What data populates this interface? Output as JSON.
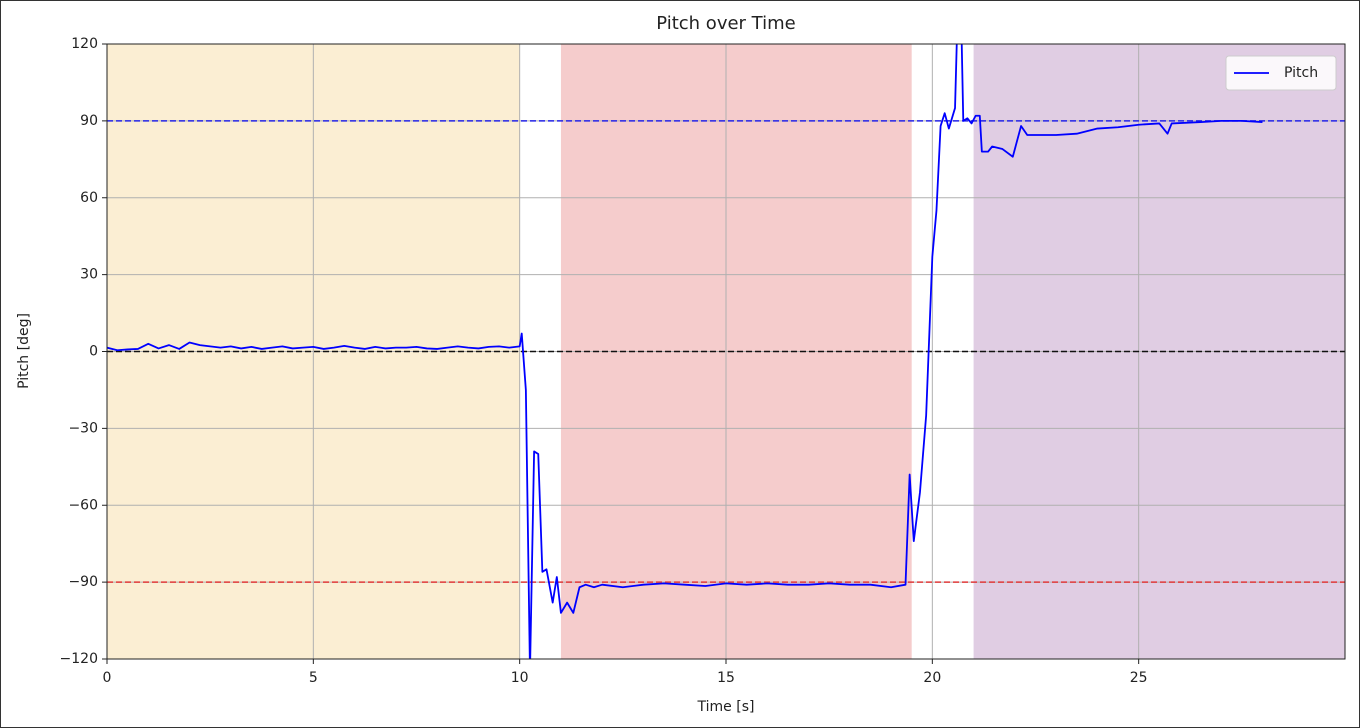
{
  "chart_data": {
    "type": "line",
    "title": "Pitch over Time",
    "xlabel": "Time [s]",
    "ylabel": "Pitch [deg]",
    "xlim": [
      0,
      30
    ],
    "ylim": [
      -120,
      120
    ],
    "xticks": [
      0,
      5,
      10,
      15,
      20,
      25
    ],
    "yticks": [
      {
        "value": -120,
        "label": "−120"
      },
      {
        "value": -90,
        "label": "−90"
      },
      {
        "value": -60,
        "label": "−60"
      },
      {
        "value": -30,
        "label": "−30"
      },
      0,
      30,
      60,
      90,
      120
    ],
    "grid": true,
    "legend": "upper right",
    "spans": [
      {
        "x0": 0,
        "x1": 10,
        "color": "#fbeed3"
      },
      {
        "x0": 11,
        "x1": 19.5,
        "color": "#f5cccc"
      },
      {
        "x0": 21,
        "x1": 30,
        "color": "#e0cde3"
      }
    ],
    "hlines": [
      {
        "y": 90,
        "color": "#2424e8"
      },
      {
        "y": 0,
        "color": "#111111"
      },
      {
        "y": -90,
        "color": "#e03a3a"
      }
    ],
    "series": [
      {
        "name": "Pitch",
        "color": "#0000ff",
        "x": [
          0,
          0.25,
          0.5,
          0.75,
          1,
          1.25,
          1.5,
          1.75,
          2,
          2.25,
          2.5,
          2.75,
          3,
          3.25,
          3.5,
          3.75,
          4,
          4.25,
          4.5,
          4.75,
          5,
          5.25,
          5.5,
          5.75,
          6,
          6.25,
          6.5,
          6.75,
          7,
          7.25,
          7.5,
          7.75,
          8,
          8.25,
          8.5,
          8.75,
          9,
          9.25,
          9.5,
          9.75,
          10,
          10.05,
          10.15,
          10.25,
          10.35,
          10.45,
          10.55,
          10.65,
          10.8,
          10.9,
          11,
          11.15,
          11.3,
          11.45,
          11.6,
          11.8,
          12,
          12.5,
          13,
          13.5,
          14,
          14.5,
          15,
          15.5,
          16,
          16.5,
          17,
          17.5,
          18,
          18.5,
          19,
          19.35,
          19.45,
          19.55,
          19.7,
          19.85,
          20,
          20.1,
          20.2,
          20.3,
          20.4,
          20.55,
          20.6,
          20.7,
          20.75,
          20.85,
          20.95,
          21.05,
          21.15,
          21.2,
          21.35,
          21.45,
          21.7,
          21.95,
          22.15,
          22.3,
          23,
          23.5,
          24,
          24.5,
          25,
          25.5,
          25.7,
          25.8,
          26.5,
          27,
          27.5,
          28
        ],
        "values": [
          1.5,
          0.5,
          0.8,
          1.0,
          3.0,
          1.2,
          2.5,
          1.0,
          3.5,
          2.5,
          2.0,
          1.5,
          2.0,
          1.2,
          1.8,
          1.0,
          1.5,
          2.0,
          1.2,
          1.5,
          1.8,
          1.0,
          1.5,
          2.2,
          1.5,
          1.0,
          1.8,
          1.2,
          1.5,
          1.5,
          1.8,
          1.2,
          1.0,
          1.5,
          2.0,
          1.5,
          1.2,
          1.8,
          2.0,
          1.5,
          2,
          7,
          -15,
          -125,
          -39,
          -40,
          -86,
          -85,
          -98,
          -88,
          -102,
          -98,
          -102,
          -92,
          -91,
          -92,
          -91,
          -92,
          -91,
          -90.5,
          -91,
          -91.5,
          -90.5,
          -91,
          -90.5,
          -91,
          -91,
          -90.5,
          -91,
          -91,
          -92,
          -91,
          -48,
          -74,
          -55,
          -25,
          37,
          55,
          88,
          93,
          87,
          95,
          125,
          130,
          90,
          91,
          89,
          92,
          92,
          78,
          78,
          80,
          79,
          76,
          88,
          84.5,
          84.5,
          85,
          87,
          87.5,
          88.5,
          89,
          85,
          89,
          89.5,
          90,
          90,
          89.5
        ]
      }
    ]
  }
}
